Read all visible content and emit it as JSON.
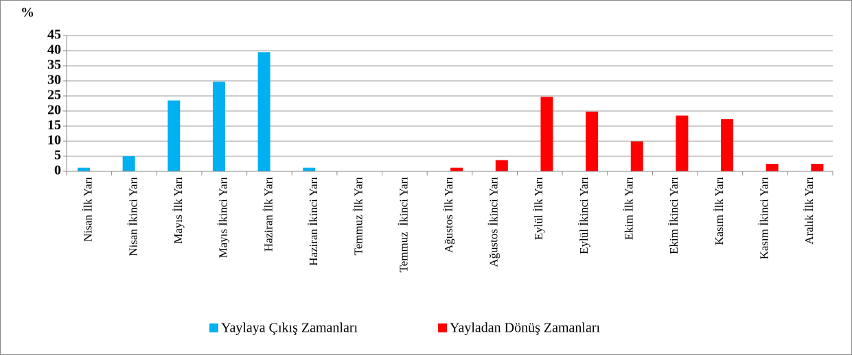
{
  "chart_data": {
    "type": "bar",
    "y_label": "%",
    "categories": [
      "Nisan İlk Yarı",
      "Nisan İkinci Yarı",
      "Mayıs İlk Yarı",
      "Mayıs İkinci Yarı",
      "Haziran İlk Yarı",
      "Haziran İkinci Yarı",
      "Temmuz İlk Yarı",
      "Temmuz  İkinci Yarı",
      "Ağustos İlk Yarı",
      "Ağustos İkinci Yarı",
      "Eylül İlk Yarı",
      "Eylül İkinci Yarı",
      "Ekim İlk Yarı",
      "Ekim İkinci Yarı",
      "Kasım İlk Yarı",
      "Kasım İkinci Yarı",
      "Aralık İlk Yarı"
    ],
    "series": [
      {
        "name": "Yaylaya Çıkış Zamanları",
        "color": "#00b0f0",
        "values": [
          1.2,
          5,
          23.5,
          29.7,
          39.5,
          1.2,
          0,
          0,
          0,
          0,
          0,
          0,
          0,
          0,
          0,
          0,
          0
        ]
      },
      {
        "name": "Yayladan Dönüş Zamanları",
        "color": "#ff0000",
        "values": [
          0,
          0,
          0,
          0,
          0,
          0,
          0,
          0,
          1.2,
          3.7,
          24.7,
          19.8,
          9.9,
          18.5,
          17.3,
          2.5,
          2.5
        ]
      }
    ],
    "ylim": [
      0,
      45
    ],
    "yticks": [
      0,
      5,
      10,
      15,
      20,
      25,
      30,
      35,
      40,
      45
    ],
    "grid": true,
    "legend": "bottom"
  }
}
